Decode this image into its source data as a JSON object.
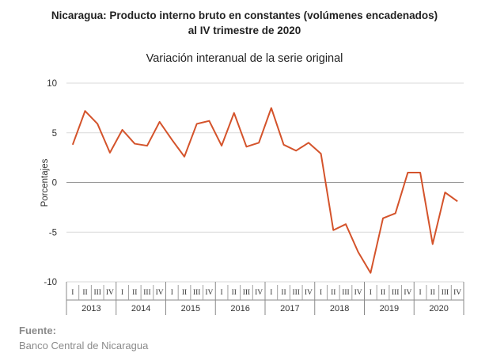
{
  "chart_data": {
    "type": "line",
    "title_line1": "Nicaragua: Producto interno bruto en constantes (volúmenes encadenados)",
    "title_line2": "al IV trimestre de 2020",
    "subtitle": "Variación interanual de la serie original",
    "ylabel": "Porcentajes",
    "ylim": [
      -10,
      10
    ],
    "yticks": [
      10,
      5,
      0,
      -5,
      -10
    ],
    "grid": true,
    "color": "#d4532b",
    "quarters": [
      "I",
      "II",
      "III",
      "IV"
    ],
    "years": [
      "2013",
      "2014",
      "2015",
      "2016",
      "2017",
      "2018",
      "2019",
      "2020"
    ],
    "values": [
      3.8,
      7.2,
      5.9,
      3.0,
      5.3,
      3.9,
      3.7,
      6.1,
      4.3,
      2.6,
      5.9,
      6.2,
      3.7,
      7.0,
      3.6,
      4.0,
      7.5,
      3.8,
      3.2,
      4.0,
      2.9,
      -4.8,
      -4.2,
      -7.0,
      -9.1,
      -3.6,
      -3.1,
      1.0,
      1.0,
      -6.2,
      -1.0,
      -1.9
    ]
  },
  "source": {
    "label": "Fuente:",
    "value": "Banco Central de Nicaragua"
  }
}
